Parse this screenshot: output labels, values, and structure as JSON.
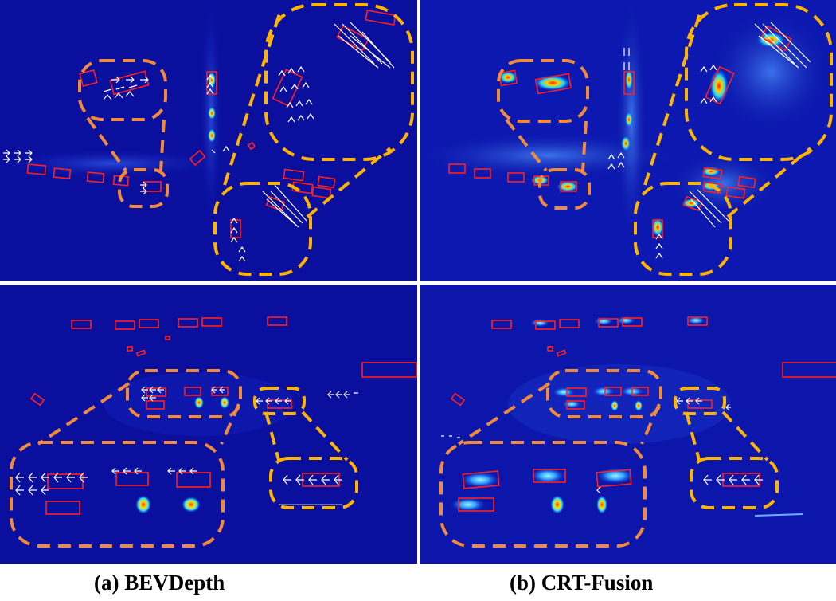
{
  "captions": {
    "a": "(a) BEVDepth",
    "b": "(b) CRT-Fusion"
  },
  "colors": {
    "background": "#0a0f9e",
    "box": "#ff2020",
    "callout_orange": "#f28a3c",
    "callout_yellow": "#ffb400",
    "arrow": "#ffffff"
  },
  "panels": [
    {
      "id": "top-left",
      "method": "BEVDepth",
      "scene": "scene-1"
    },
    {
      "id": "top-right",
      "method": "CRT-Fusion",
      "scene": "scene-1"
    },
    {
      "id": "bottom-left",
      "method": "BEVDepth",
      "scene": "scene-2"
    },
    {
      "id": "bottom-right",
      "method": "CRT-Fusion",
      "scene": "scene-2"
    }
  ]
}
